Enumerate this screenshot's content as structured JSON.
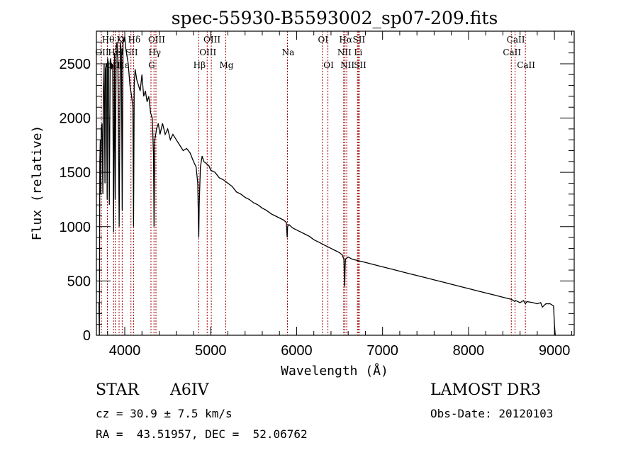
{
  "chart_data": {
    "type": "line",
    "title": "spec-55930-B5593002_sp07-209.fits",
    "xlabel": "Wavelength (Å)",
    "ylabel": "Flux (relative)",
    "xlim": [
      3670,
      9230
    ],
    "ylim": [
      0,
      2800
    ],
    "xticks": [
      4000,
      5000,
      6000,
      7000,
      8000,
      9000
    ],
    "xtick_labels": [
      "4000",
      "5000",
      "6000",
      "7000",
      "8000",
      "9000"
    ],
    "xminor_step": 200,
    "yticks": [
      0,
      500,
      1000,
      1500,
      2000,
      2500
    ],
    "ytick_labels": [
      "0",
      "500",
      "1000",
      "1500",
      "2000",
      "2500"
    ],
    "yminor_step": 100,
    "grid": false,
    "series": [
      {
        "name": "spectrum",
        "color": "#000000",
        "x": [
          3700,
          3705,
          3710,
          3715,
          3720,
          3725,
          3735,
          3745,
          3750,
          3760,
          3770,
          3775,
          3785,
          3795,
          3800,
          3810,
          3820,
          3830,
          3835,
          3845,
          3860,
          3870,
          3880,
          3889,
          3900,
          3910,
          3920,
          3935,
          3950,
          3960,
          3970,
          3980,
          3990,
          4000,
          4010,
          4020,
          4040,
          4060,
          4080,
          4095,
          4102,
          4110,
          4120,
          4140,
          4160,
          4180,
          4200,
          4220,
          4240,
          4260,
          4280,
          4300,
          4320,
          4335,
          4341,
          4350,
          4370,
          4390,
          4410,
          4440,
          4470,
          4500,
          4530,
          4560,
          4600,
          4640,
          4680,
          4720,
          4760,
          4800,
          4830,
          4850,
          4858,
          4861,
          4866,
          4880,
          4900,
          4920,
          4950,
          4980,
          5000,
          5050,
          5100,
          5150,
          5200,
          5250,
          5300,
          5350,
          5400,
          5450,
          5500,
          5550,
          5600,
          5650,
          5700,
          5750,
          5800,
          5850,
          5880,
          5890,
          5895,
          5910,
          5950,
          6000,
          6050,
          6100,
          6150,
          6200,
          6250,
          6300,
          6350,
          6400,
          6450,
          6500,
          6530,
          6550,
          6560,
          6563,
          6568,
          6580,
          6600,
          6650,
          6700,
          6750,
          6800,
          6900,
          7000,
          7100,
          7200,
          7300,
          7400,
          7500,
          7600,
          7700,
          7800,
          7900,
          8000,
          8100,
          8200,
          8300,
          8400,
          8500,
          8540,
          8545,
          8560,
          8600,
          8640,
          8662,
          8680,
          8750,
          8800,
          8840,
          8860,
          8900,
          8950,
          8990,
          9000,
          9010,
          9015
        ],
        "y": [
          300,
          0,
          1600,
          1800,
          1300,
          1900,
          1950,
          1300,
          2200,
          2500,
          1400,
          2450,
          2500,
          1250,
          2550,
          2500,
          1200,
          2500,
          2550,
          2450,
          2500,
          950,
          2600,
          1250,
          2650,
          2700,
          2500,
          1000,
          2700,
          2600,
          1150,
          2750,
          2700,
          2750,
          2650,
          2600,
          2500,
          2300,
          2200,
          2100,
          1000,
          2300,
          2450,
          2350,
          2300,
          2250,
          2400,
          2200,
          2250,
          2150,
          2200,
          2050,
          2000,
          1650,
          1000,
          1800,
          1900,
          1950,
          1850,
          1950,
          1850,
          1900,
          1800,
          1850,
          1800,
          1750,
          1700,
          1720,
          1680,
          1600,
          1550,
          1400,
          1000,
          900,
          1200,
          1550,
          1650,
          1600,
          1580,
          1560,
          1520,
          1500,
          1450,
          1430,
          1400,
          1370,
          1320,
          1300,
          1270,
          1250,
          1220,
          1200,
          1170,
          1150,
          1120,
          1100,
          1080,
          1060,
          1040,
          900,
          1000,
          1020,
          990,
          970,
          950,
          930,
          910,
          880,
          860,
          840,
          820,
          800,
          780,
          760,
          740,
          700,
          450,
          600,
          700,
          710,
          720,
          700,
          690,
          680,
          670,
          650,
          630,
          610,
          590,
          570,
          550,
          530,
          510,
          490,
          470,
          450,
          430,
          410,
          390,
          370,
          350,
          330,
          310,
          320,
          315,
          300,
          320,
          290,
          310,
          300,
          290,
          300,
          260,
          290,
          290,
          270,
          100,
          0,
          0
        ]
      }
    ],
    "line_markers": {
      "color": "#a00000",
      "style": "dotted",
      "lines": [
        {
          "label": "Hθ",
          "wavelength": 3798,
          "row": 0
        },
        {
          "label": "K",
          "wavelength": 3934,
          "row": 0
        },
        {
          "label": "Hδ",
          "wavelength": 4102,
          "row": 0
        },
        {
          "label": "OIII",
          "wavelength": 4363,
          "row": 0
        },
        {
          "label": "OIII",
          "wavelength": 5007,
          "row": 0
        },
        {
          "label": "OI",
          "wavelength": 6300,
          "row": 0
        },
        {
          "label": "Hα",
          "wavelength": 6563,
          "row": 0
        },
        {
          "label": "SII",
          "wavelength": 6717,
          "row": 0
        },
        {
          "label": "CaII",
          "wavelength": 8542,
          "row": 0
        },
        {
          "label": "OII",
          "wavelength": 3727,
          "row": 1
        },
        {
          "label": "HeI",
          "wavelength": 3889,
          "row": 1
        },
        {
          "label": "SII",
          "wavelength": 4072,
          "row": 1
        },
        {
          "label": "Hγ",
          "wavelength": 4340,
          "row": 1
        },
        {
          "label": "OIII",
          "wavelength": 4959,
          "row": 1
        },
        {
          "label": "Na",
          "wavelength": 5893,
          "row": 1
        },
        {
          "label": "NII",
          "wavelength": 6548,
          "row": 1
        },
        {
          "label": "Li",
          "wavelength": 6708,
          "row": 1
        },
        {
          "label": "CaII",
          "wavelength": 8498,
          "row": 1
        },
        {
          "label": "OIII",
          "wavelength": 3869,
          "row": 2
        },
        {
          "label": "Hε",
          "wavelength": 3970,
          "row": 2
        },
        {
          "label": "G",
          "wavelength": 4305,
          "row": 2
        },
        {
          "label": "Hβ",
          "wavelength": 4861,
          "row": 2
        },
        {
          "label": "Mg",
          "wavelength": 5175,
          "row": 2
        },
        {
          "label": "OI",
          "wavelength": 6364,
          "row": 2
        },
        {
          "label": "NII",
          "wavelength": 6583,
          "row": 2
        },
        {
          "label": "SII",
          "wavelength": 6731,
          "row": 2
        },
        {
          "label": "CaII",
          "wavelength": 8662,
          "row": 2
        }
      ]
    },
    "annotations": {
      "object_type": "STAR",
      "subclass": "A6IV",
      "redshift": "cz = 30.9 ± 7.5 km/s",
      "coords": "RA =  43.51957, DEC =  52.06762",
      "survey": "LAMOST DR3",
      "obs_date": "Obs-Date: 20120103"
    }
  }
}
